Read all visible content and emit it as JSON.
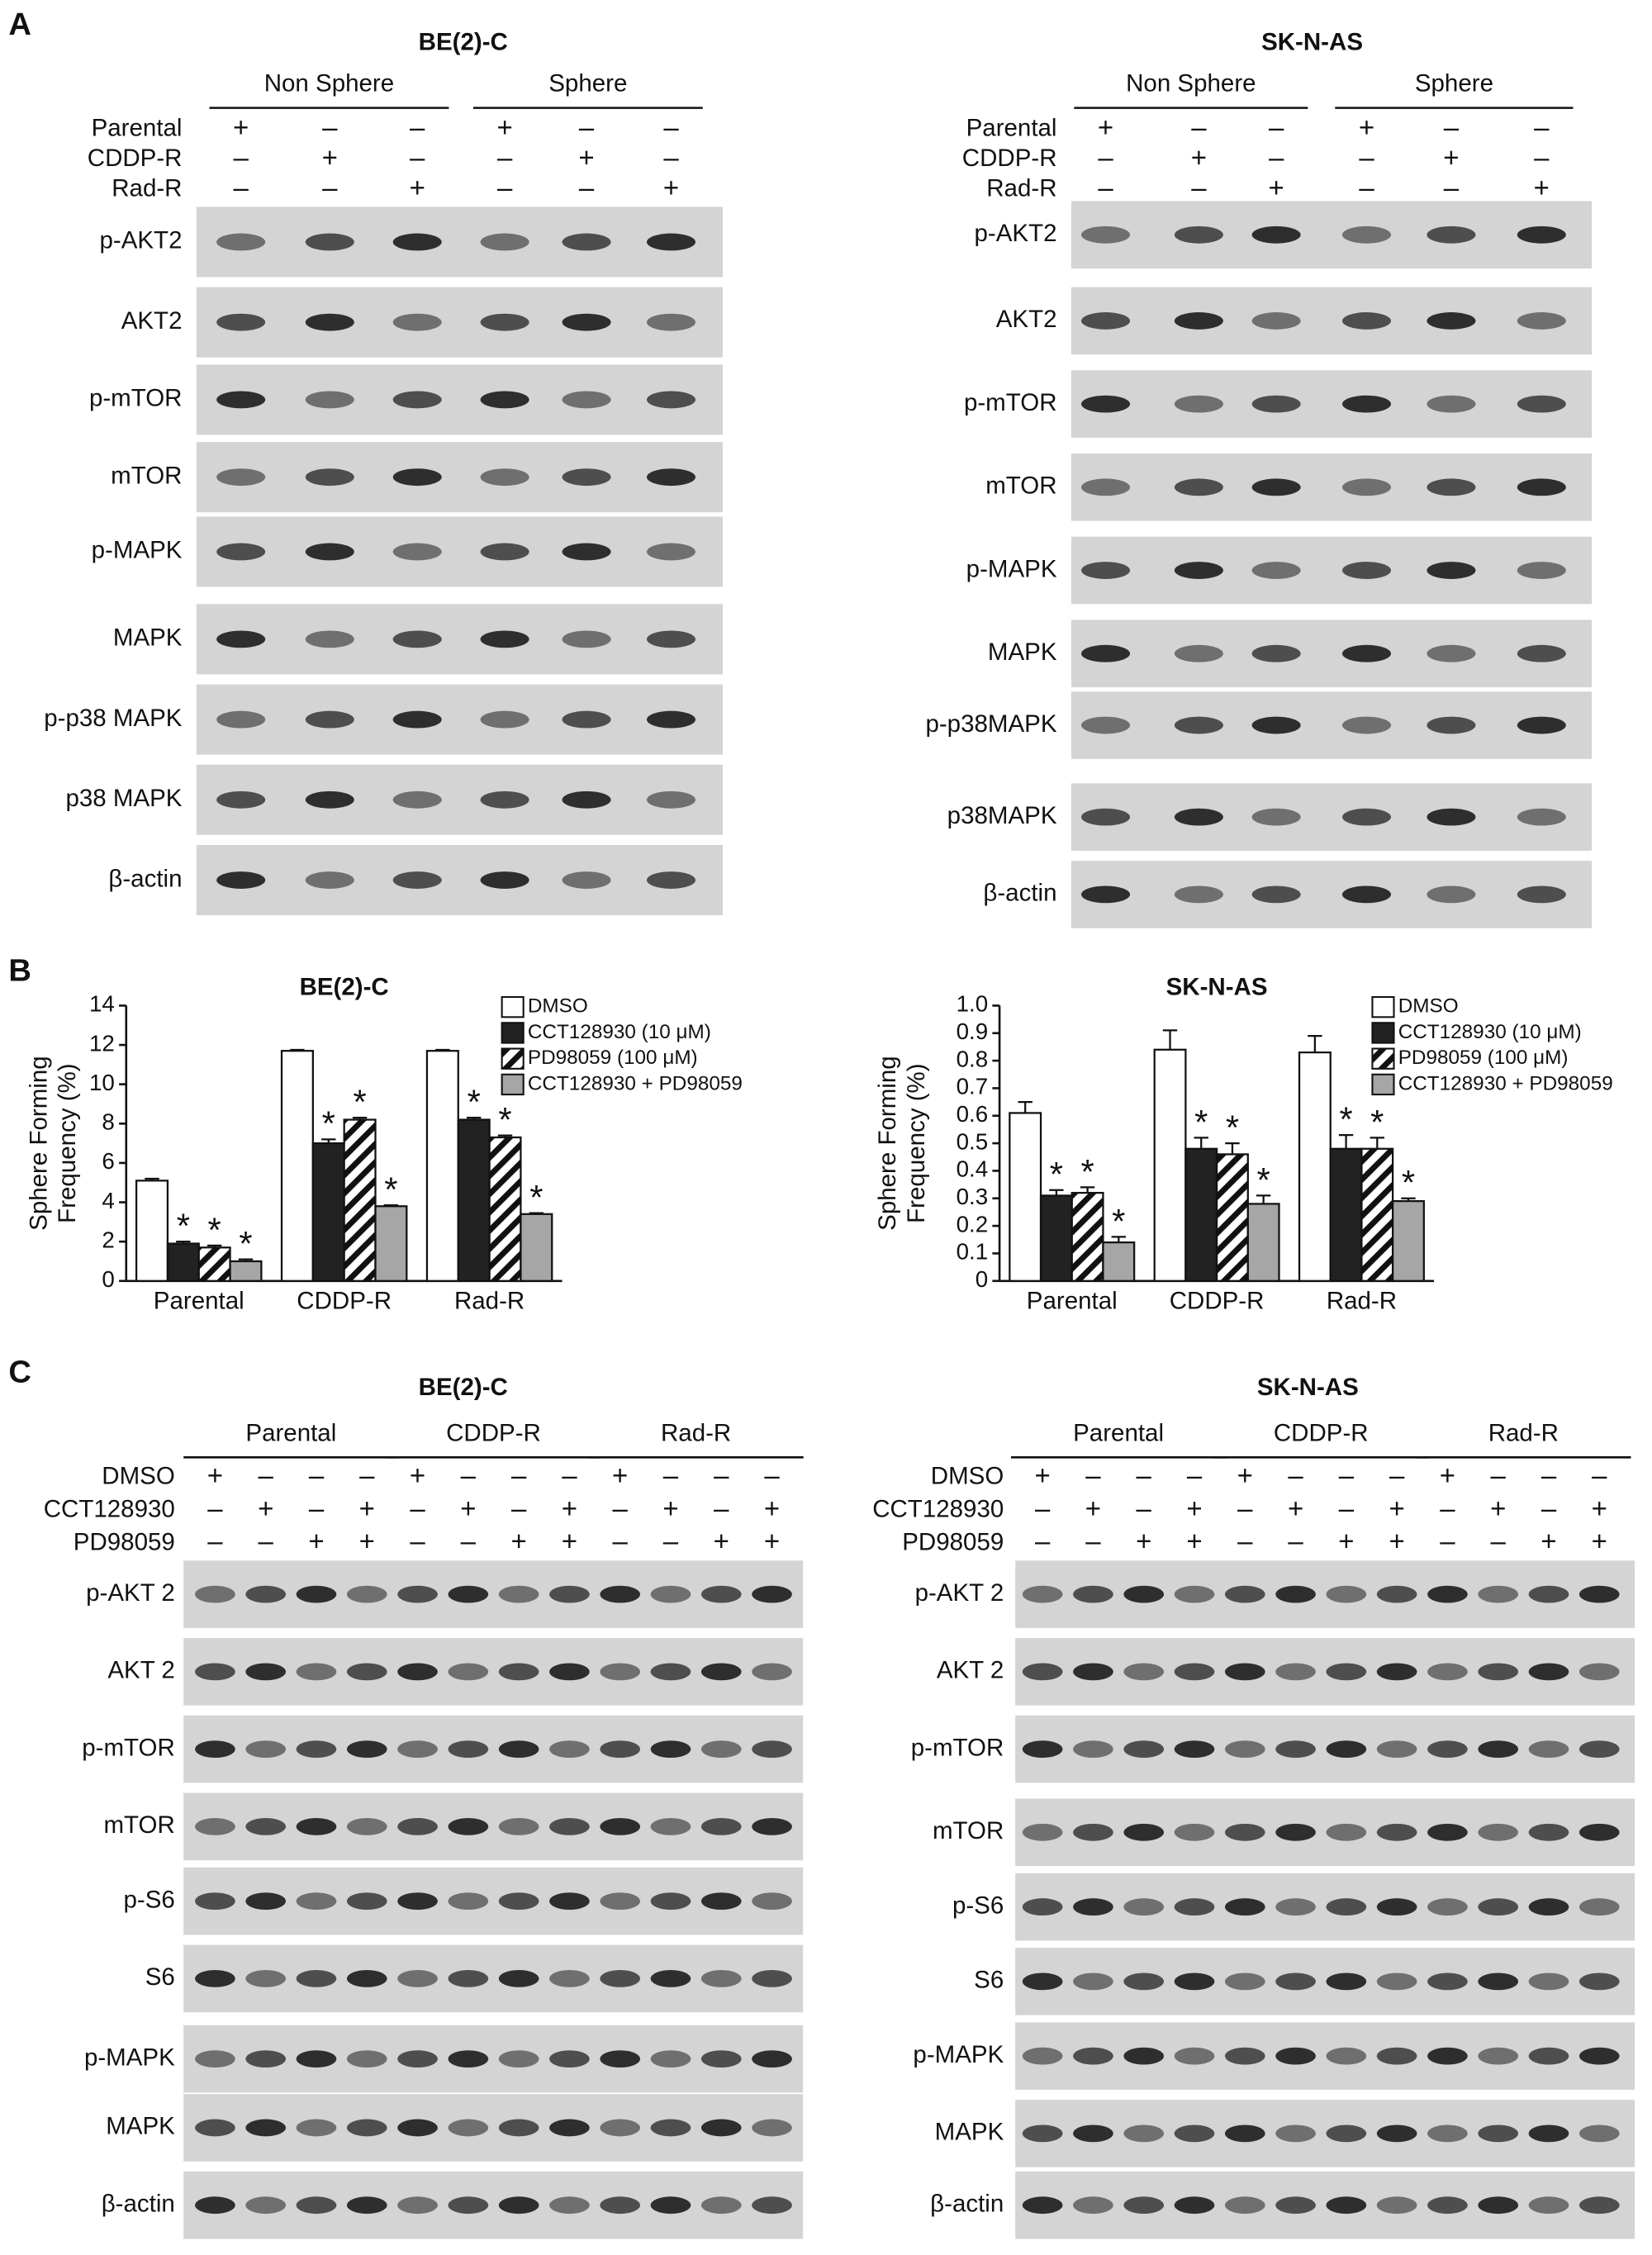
{
  "panel_labels": [
    "A",
    "B",
    "C"
  ],
  "blots_a": [
    {
      "title": "BE(2)-C",
      "groups": [
        "Non Sphere",
        "Sphere"
      ],
      "conditions": [
        {
          "label": "Parental",
          "signs": [
            "+",
            "–",
            "–",
            "+",
            "–",
            "–"
          ]
        },
        {
          "label": "CDDP-R",
          "signs": [
            "–",
            "+",
            "–",
            "–",
            "+",
            "–"
          ]
        },
        {
          "label": "Rad-R",
          "signs": [
            "–",
            "–",
            "+",
            "–",
            "–",
            "+"
          ]
        }
      ],
      "bands": [
        "p-AKT2",
        "AKT2",
        "p-mTOR",
        "mTOR",
        "p-MAPK",
        "MAPK",
        "p-p38 MAPK",
        "p38 MAPK",
        "β-actin"
      ]
    },
    {
      "title": "SK-N-AS",
      "groups": [
        "Non Sphere",
        "Sphere"
      ],
      "conditions": [
        {
          "label": "Parental",
          "signs": [
            "+",
            "–",
            "–",
            "+",
            "–",
            "–"
          ]
        },
        {
          "label": "CDDP-R",
          "signs": [
            "–",
            "+",
            "–",
            "–",
            "+",
            "–"
          ]
        },
        {
          "label": "Rad-R",
          "signs": [
            "–",
            "–",
            "+",
            "–",
            "–",
            "+"
          ]
        }
      ],
      "bands": [
        "p-AKT2",
        "AKT2",
        "p-mTOR",
        "mTOR",
        "p-MAPK",
        "MAPK",
        "p-p38MAPK",
        "p38MAPK",
        "β-actin"
      ]
    }
  ],
  "chart_data": [
    {
      "type": "bar",
      "title": "BE(2)-C",
      "ylabel": [
        "Sphere Forming",
        "Frequency (%)"
      ],
      "categories": [
        "Parental",
        "CDDP-R",
        "Rad-R"
      ],
      "ylim": [
        0,
        14
      ],
      "yticks": [
        0,
        2,
        4,
        6,
        8,
        10,
        12,
        14
      ],
      "series": [
        {
          "name": "DMSO",
          "color": "#ffffff",
          "values": [
            5.1,
            11.7,
            11.7
          ],
          "errors": [
            0.1,
            0.05,
            0.05
          ]
        },
        {
          "name": "CCT128930 (10 μM)",
          "color": "#222222",
          "values": [
            1.9,
            7.0,
            8.2
          ],
          "errors": [
            0.1,
            0.2,
            0.1
          ],
          "stars": [
            "*",
            "*",
            "*"
          ]
        },
        {
          "name": "PD98059 (100 μM)",
          "color": "#ffffff",
          "pattern": "hatch",
          "values": [
            1.7,
            8.2,
            7.3
          ],
          "errors": [
            0.1,
            0.1,
            0.1
          ],
          "stars": [
            "*",
            "*",
            "*"
          ]
        },
        {
          "name": "CCT128930 + PD98059",
          "color": "#a6a6a6",
          "values": [
            1.0,
            3.8,
            3.4
          ],
          "errors": [
            0.1,
            0.05,
            0.05
          ],
          "stars": [
            "*",
            "*",
            "*"
          ]
        }
      ]
    },
    {
      "type": "bar",
      "title": "SK-N-AS",
      "ylabel": [
        "Sphere Forming",
        "Frequency (%)"
      ],
      "categories": [
        "Parental",
        "CDDP-R",
        "Rad-R"
      ],
      "ylim": [
        0,
        1
      ],
      "yticks": [
        0,
        0.1,
        0.2,
        0.3,
        0.4,
        0.5,
        0.6,
        0.7,
        0.8,
        0.9,
        {
          "value": 1,
          "label": "1.0"
        }
      ],
      "series": [
        {
          "name": "DMSO",
          "color": "#ffffff",
          "values": [
            0.61,
            0.84,
            0.83
          ],
          "errors": [
            0.04,
            0.07,
            0.06
          ]
        },
        {
          "name": "CCT128930 (10 μM)",
          "color": "#222222",
          "values": [
            0.31,
            0.48,
            0.48
          ],
          "errors": [
            0.02,
            0.04,
            0.05
          ],
          "stars": [
            "*",
            "*",
            "*"
          ]
        },
        {
          "name": "PD98059 (100 μM)",
          "color": "#ffffff",
          "pattern": "hatch",
          "values": [
            0.32,
            0.46,
            0.48
          ],
          "errors": [
            0.02,
            0.04,
            0.04
          ],
          "stars": [
            "*",
            "*",
            "*"
          ]
        },
        {
          "name": "CCT128930 + PD98059",
          "color": "#a6a6a6",
          "values": [
            0.14,
            0.28,
            0.29
          ],
          "errors": [
            0.02,
            0.03,
            0.01
          ],
          "stars": [
            "*",
            "*",
            "*"
          ]
        }
      ]
    }
  ],
  "blots_c": [
    {
      "title": "BE(2)-C",
      "groups": [
        "Parental",
        "CDDP-R",
        "Rad-R"
      ],
      "conditions": [
        {
          "label": "DMSO",
          "signs": [
            "+",
            "–",
            "–",
            "–",
            "+",
            "–",
            "–",
            "–",
            "+",
            "–",
            "–",
            "–"
          ]
        },
        {
          "label": "CCT128930",
          "signs": [
            "–",
            "+",
            "–",
            "+",
            "–",
            "+",
            "–",
            "+",
            "–",
            "+",
            "–",
            "+"
          ]
        },
        {
          "label": "PD98059",
          "signs": [
            "–",
            "–",
            "+",
            "+",
            "–",
            "–",
            "+",
            "+",
            "–",
            "–",
            "+",
            "+"
          ]
        }
      ],
      "bands": [
        "p-AKT 2",
        "AKT 2",
        "p-mTOR",
        "mTOR",
        "p-S6",
        "S6",
        "p-MAPK",
        "MAPK",
        "β-actin"
      ]
    },
    {
      "title": "SK-N-AS",
      "groups": [
        "Parental",
        "CDDP-R",
        "Rad-R"
      ],
      "conditions": [
        {
          "label": "DMSO",
          "signs": [
            "+",
            "–",
            "–",
            "–",
            "+",
            "–",
            "–",
            "–",
            "+",
            "–",
            "–",
            "–"
          ]
        },
        {
          "label": "CCT128930",
          "signs": [
            "–",
            "+",
            "–",
            "+",
            "–",
            "+",
            "–",
            "+",
            "–",
            "+",
            "–",
            "+"
          ]
        },
        {
          "label": "PD98059",
          "signs": [
            "–",
            "–",
            "+",
            "+",
            "–",
            "–",
            "+",
            "+",
            "–",
            "–",
            "+",
            "+"
          ]
        }
      ],
      "bands": [
        "p-AKT 2",
        "AKT 2",
        "p-mTOR",
        "mTOR",
        "p-S6",
        "S6",
        "p-MAPK",
        "MAPK",
        "β-actin"
      ]
    }
  ]
}
